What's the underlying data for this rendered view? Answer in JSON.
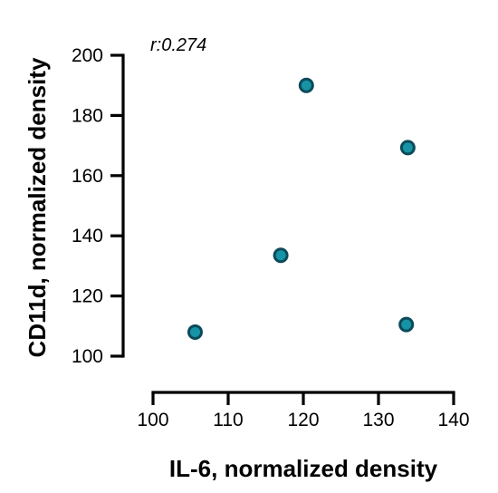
{
  "chart_data": {
    "type": "scatter",
    "title": "",
    "xlabel": "IL-6, normalized density",
    "ylabel": "CD11d, normalized density",
    "xlim": [
      100,
      140
    ],
    "ylim": [
      100,
      200
    ],
    "xticks": [
      100,
      110,
      120,
      130,
      140
    ],
    "yticks": [
      100,
      120,
      140,
      160,
      180,
      200
    ],
    "annotation": "r:0.274",
    "points": [
      {
        "x": 105.6,
        "y": 108
      },
      {
        "x": 117.0,
        "y": 133.5
      },
      {
        "x": 120.4,
        "y": 190
      },
      {
        "x": 133.7,
        "y": 110.5
      },
      {
        "x": 133.9,
        "y": 169.3
      }
    ],
    "grid": false,
    "colors": {
      "marker_fill": "#1694a6",
      "marker_edge": "#0b4a5a"
    }
  }
}
